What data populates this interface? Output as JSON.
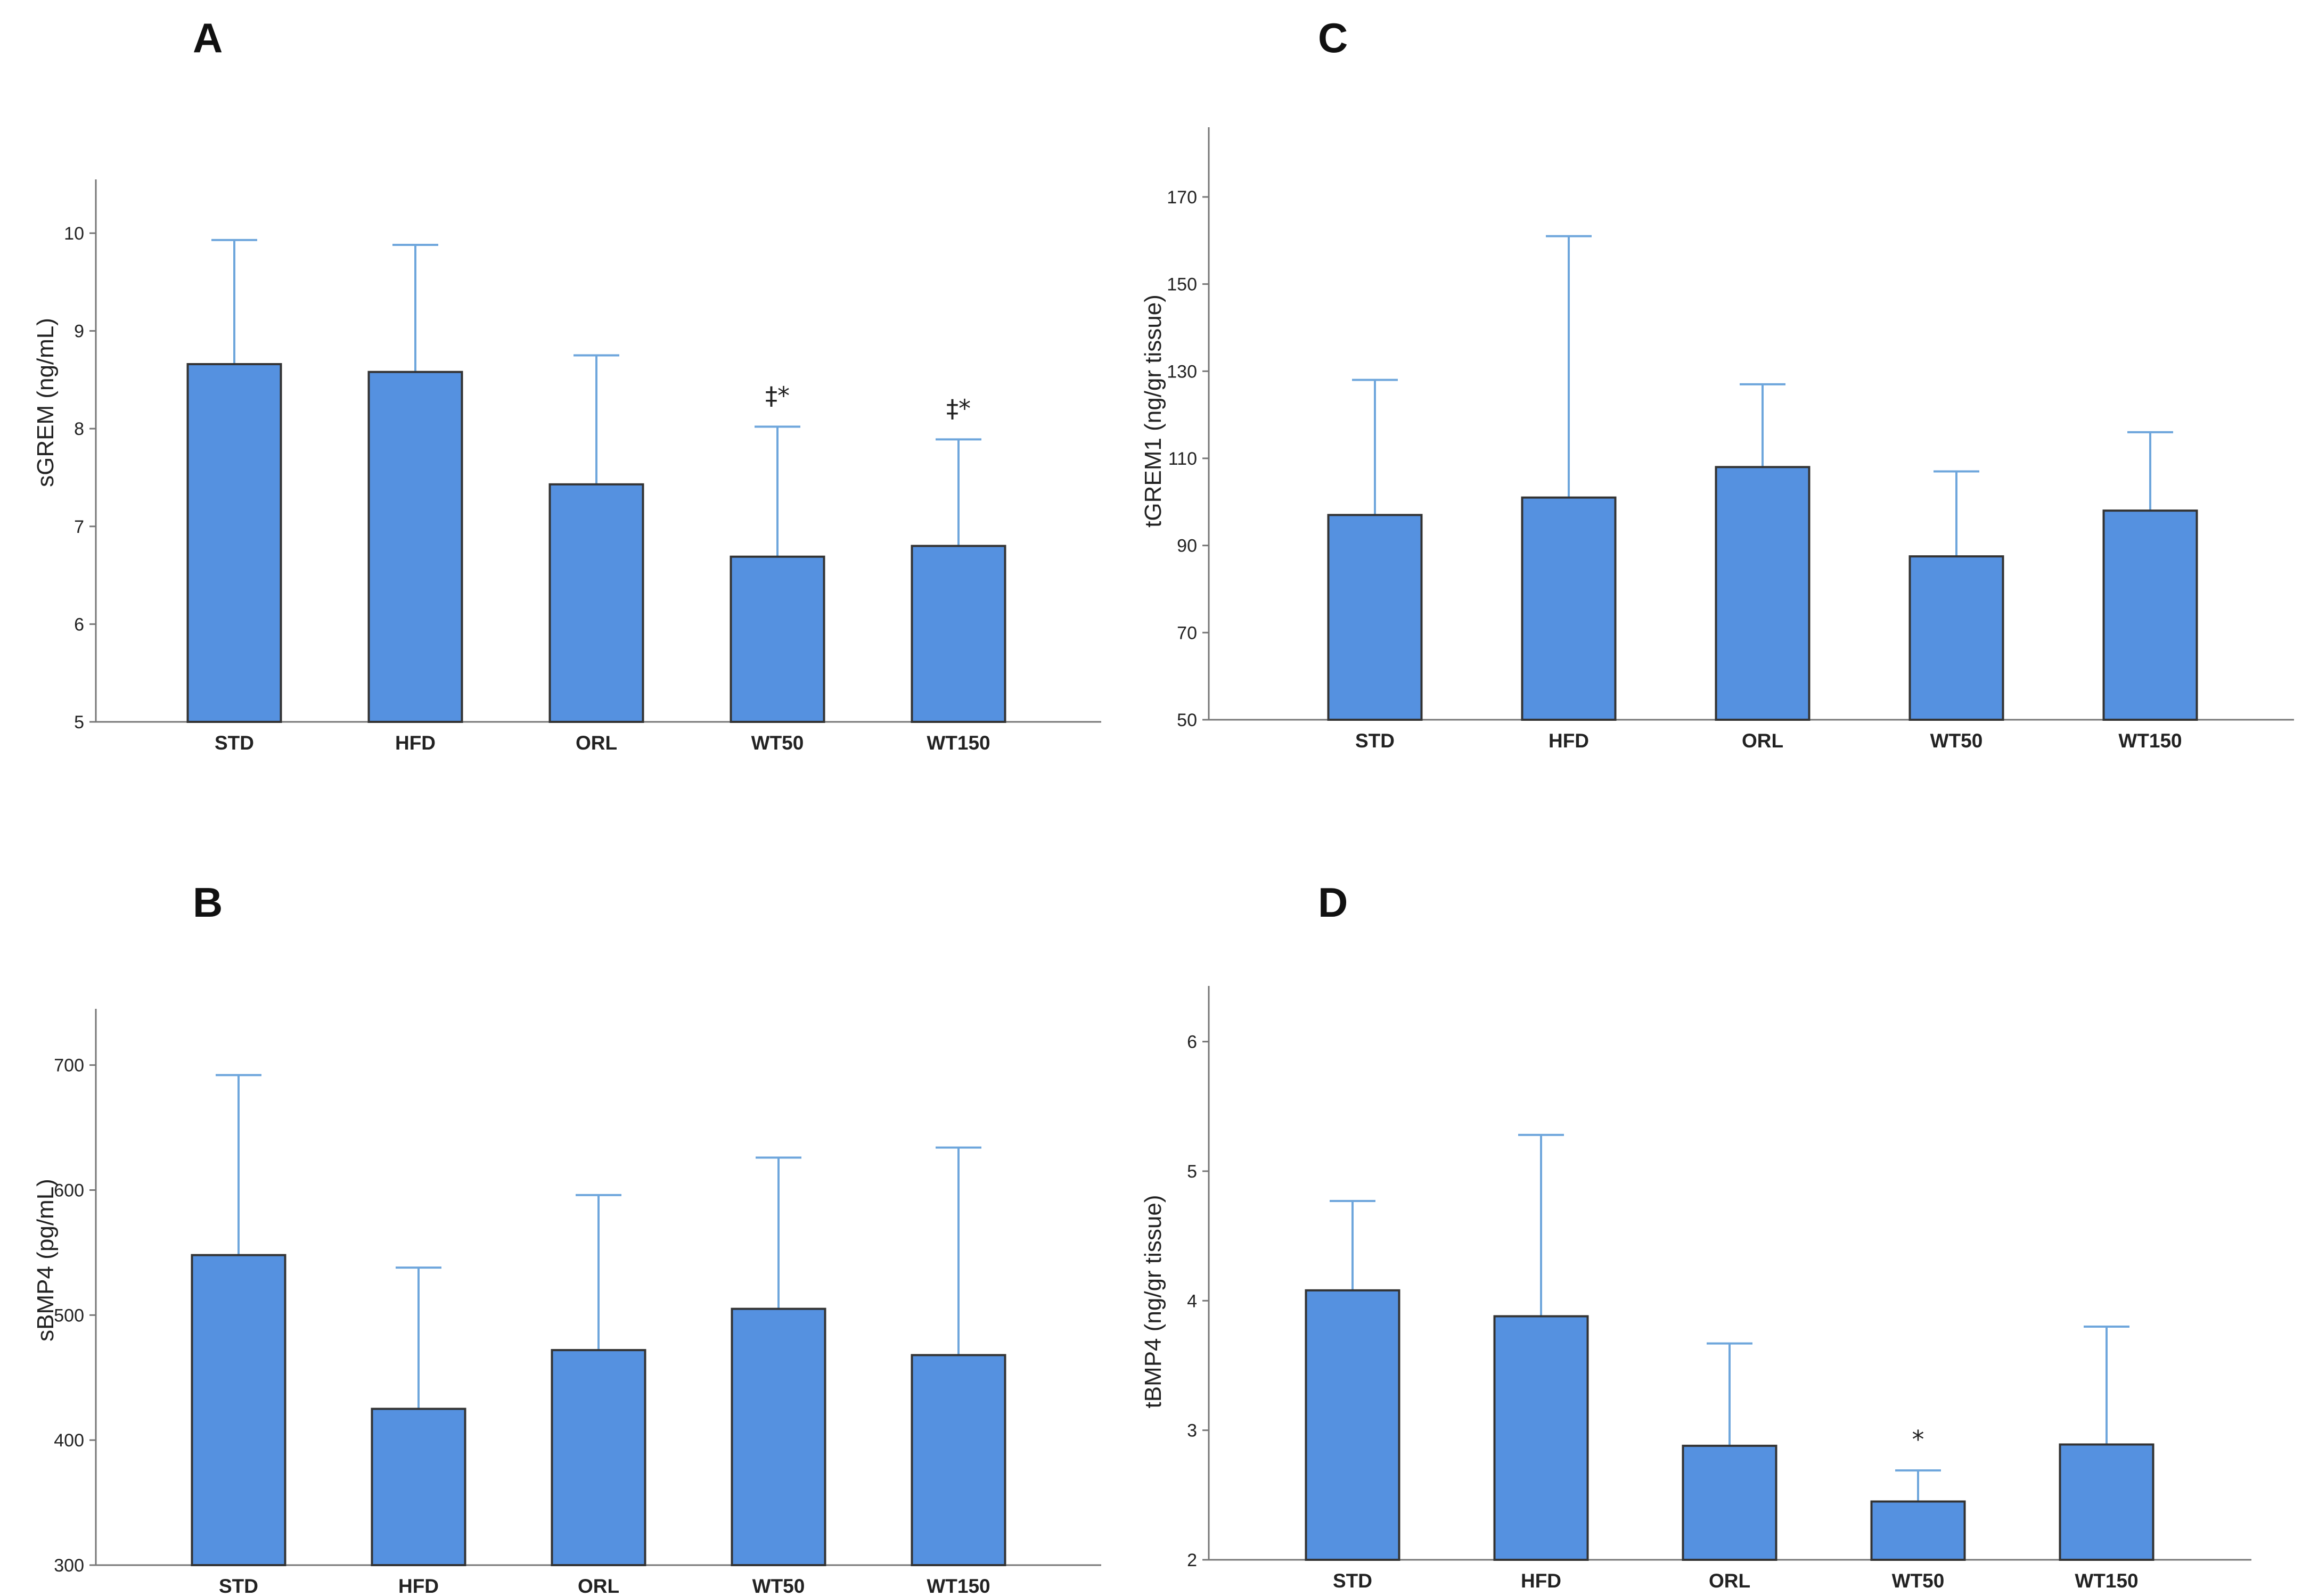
{
  "colors": {
    "bar_fill": "#5591e0",
    "bar_stroke": "#333333",
    "error_bar": "#6ea6dc",
    "axis": "#777777"
  },
  "chart_data": [
    {
      "panel": "A",
      "type": "bar",
      "categories": [
        "STD",
        "HFD",
        "ORL",
        "WT50",
        "WT150"
      ],
      "values": [
        8.66,
        8.58,
        7.43,
        6.69,
        6.8
      ],
      "error_upper": [
        9.93,
        9.88,
        8.75,
        8.02,
        7.89
      ],
      "annotations": [
        "",
        "",
        "",
        "‡*",
        "‡*"
      ],
      "ylabel": "sGREM (ng/mL)",
      "xlabel": "",
      "ylim": [
        5,
        10.55
      ],
      "yticks": [
        5,
        6,
        7,
        8,
        9,
        10
      ]
    },
    {
      "panel": "B",
      "type": "bar",
      "categories": [
        "STD",
        "HFD",
        "ORL",
        "WT50",
        "WT150"
      ],
      "values": [
        548,
        425,
        472,
        505,
        468
      ],
      "error_upper": [
        692,
        538,
        596,
        626,
        634
      ],
      "annotations": [
        "",
        "",
        "",
        "",
        ""
      ],
      "ylabel": "sBMP4 (pg/mL)",
      "xlabel": "",
      "ylim": [
        300,
        745
      ],
      "yticks": [
        300,
        400,
        500,
        600,
        700
      ]
    },
    {
      "panel": "C",
      "type": "bar",
      "categories": [
        "STD",
        "HFD",
        "ORL",
        "WT50",
        "WT150"
      ],
      "values": [
        97,
        101,
        108,
        87.5,
        98
      ],
      "error_upper": [
        128,
        161,
        127,
        107,
        116
      ],
      "annotations": [
        "",
        "",
        "",
        "",
        ""
      ],
      "ylabel": "tGREM1 (ng/gr tissue)",
      "xlabel": "",
      "ylim": [
        50,
        186
      ],
      "yticks": [
        50,
        70,
        90,
        110,
        130,
        150,
        170
      ]
    },
    {
      "panel": "D",
      "type": "bar",
      "categories": [
        "STD",
        "HFD",
        "ORL",
        "WT50",
        "WT150"
      ],
      "values": [
        4.08,
        3.88,
        2.88,
        2.45,
        2.89
      ],
      "error_upper": [
        4.77,
        5.28,
        3.67,
        2.69,
        3.8
      ],
      "annotations": [
        "",
        "",
        "",
        "*",
        ""
      ],
      "ylabel": "tBMP4 (ng/gr tissue)",
      "xlabel": "",
      "ylim": [
        2,
        6.43
      ],
      "yticks": [
        2,
        3,
        4,
        5,
        6
      ]
    }
  ]
}
